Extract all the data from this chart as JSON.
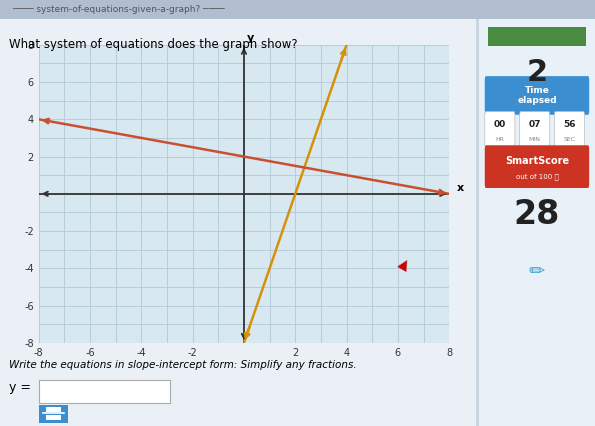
{
  "title": "What system of equations does the graph show?",
  "top_bar_text": "system-of-equations-given-a-graph?",
  "xmin": -8,
  "xmax": 8,
  "ymin": -8,
  "ymax": 8,
  "line1": {
    "slope": 4,
    "intercept": -8,
    "color": "#D4920A",
    "linewidth": 1.8
  },
  "line2": {
    "slope": -0.25,
    "intercept": 2,
    "color": "#C85030",
    "linewidth": 1.8
  },
  "page_bg": "#C8D4E0",
  "content_bg": "#EAF0F5",
  "graph_bg": "#D8E8F0",
  "grid_color": "#B0C8D8",
  "axis_color": "#333333",
  "sidebar_bg": "#E8F0F8",
  "sidebar_number": "2",
  "sidebar_time_color": "#3B8FD0",
  "sidebar_smartscore_color": "#CC3322",
  "sidebar_smartscore_value": "28",
  "footer_text": "Write the equations in slope-intercept form: Simplify any fractions.",
  "ylabel_text": "y =",
  "fraction_btn_color": "#3B8FD0",
  "green_bar_color": "#4A8C3F",
  "top_bg_color": "#B0BED0",
  "cursor_color": "#CC0000"
}
